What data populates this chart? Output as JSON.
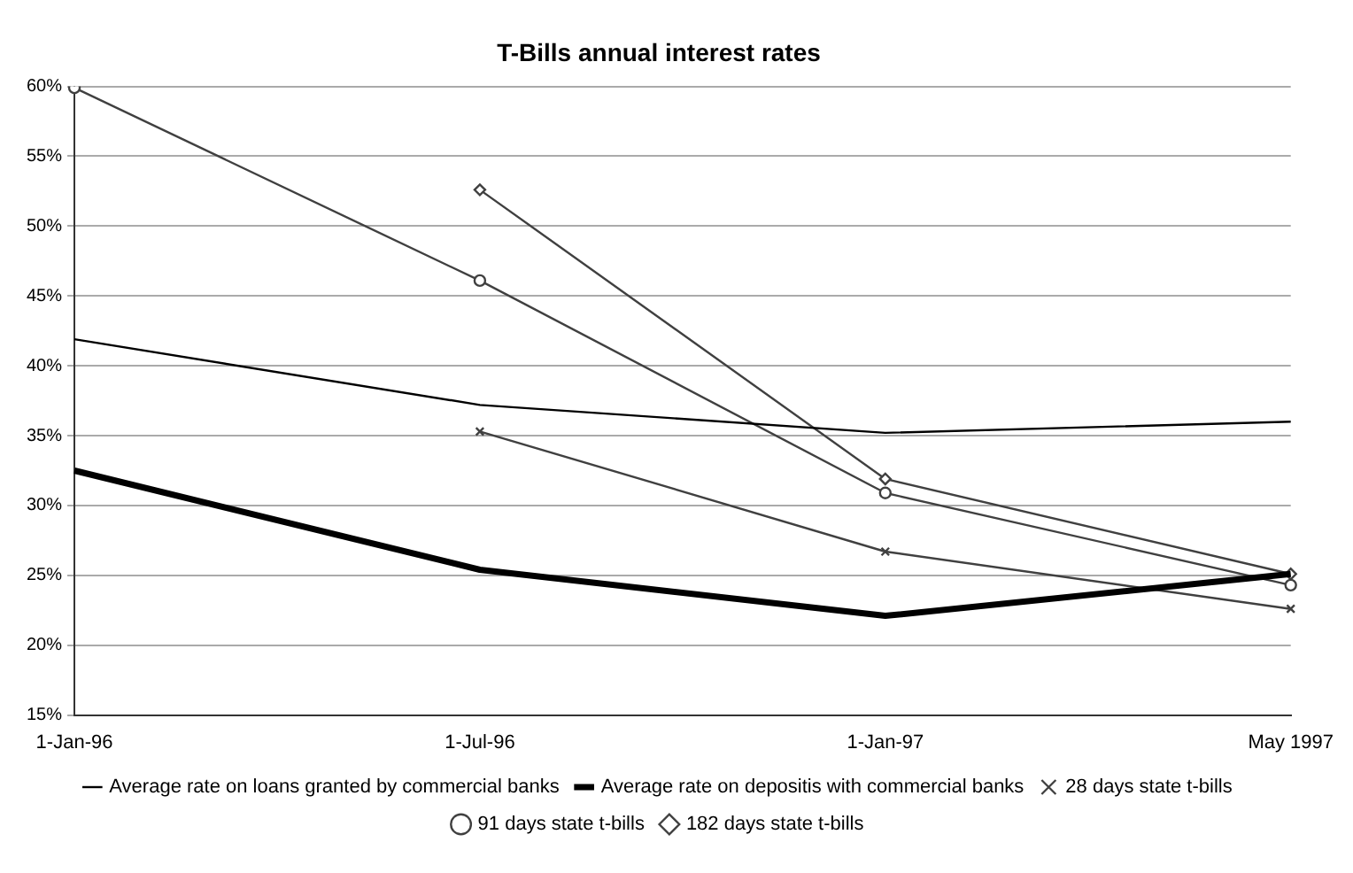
{
  "chart_data": {
    "type": "line",
    "title": "T-Bills annual interest rates",
    "categories": [
      "1-Jan-96",
      "1-Jul-96",
      "1-Jan-97",
      "May 1997"
    ],
    "series": [
      {
        "name": "Average rate on loans granted by commercial banks",
        "color": "#000000",
        "marker": "none",
        "values": [
          41.9,
          37.2,
          35.2,
          36.0
        ]
      },
      {
        "name": "Average rate on depositis with commercial banks",
        "color": "#000000",
        "marker": "none",
        "values": [
          32.5,
          25.4,
          22.1,
          25.1
        ]
      },
      {
        "name": "28 days state t-bills",
        "color": "#404040",
        "marker": "cross",
        "values": [
          null,
          35.3,
          26.7,
          22.6
        ]
      },
      {
        "name": "91 days state t-bills",
        "color": "#404040",
        "marker": "circle",
        "values": [
          59.9,
          46.1,
          30.9,
          24.3
        ]
      },
      {
        "name": "182 days state t-bills",
        "color": "#404040",
        "marker": "diamond",
        "values": [
          null,
          52.6,
          31.9,
          25.1
        ]
      }
    ],
    "ylim": [
      15,
      60
    ],
    "yticks": [
      {
        "value": 15,
        "label": "15%"
      },
      {
        "value": 20,
        "label": "20%"
      },
      {
        "value": 25,
        "label": "25%"
      },
      {
        "value": 30,
        "label": "30%"
      },
      {
        "value": 35,
        "label": "35%"
      },
      {
        "value": 40,
        "label": "40%"
      },
      {
        "value": 45,
        "label": "45%"
      },
      {
        "value": 50,
        "label": "50%"
      },
      {
        "value": 55,
        "label": "55%"
      },
      {
        "value": 60,
        "label": "60%"
      }
    ],
    "grid": "y",
    "legend": "bottom",
    "line_style": "solid"
  }
}
